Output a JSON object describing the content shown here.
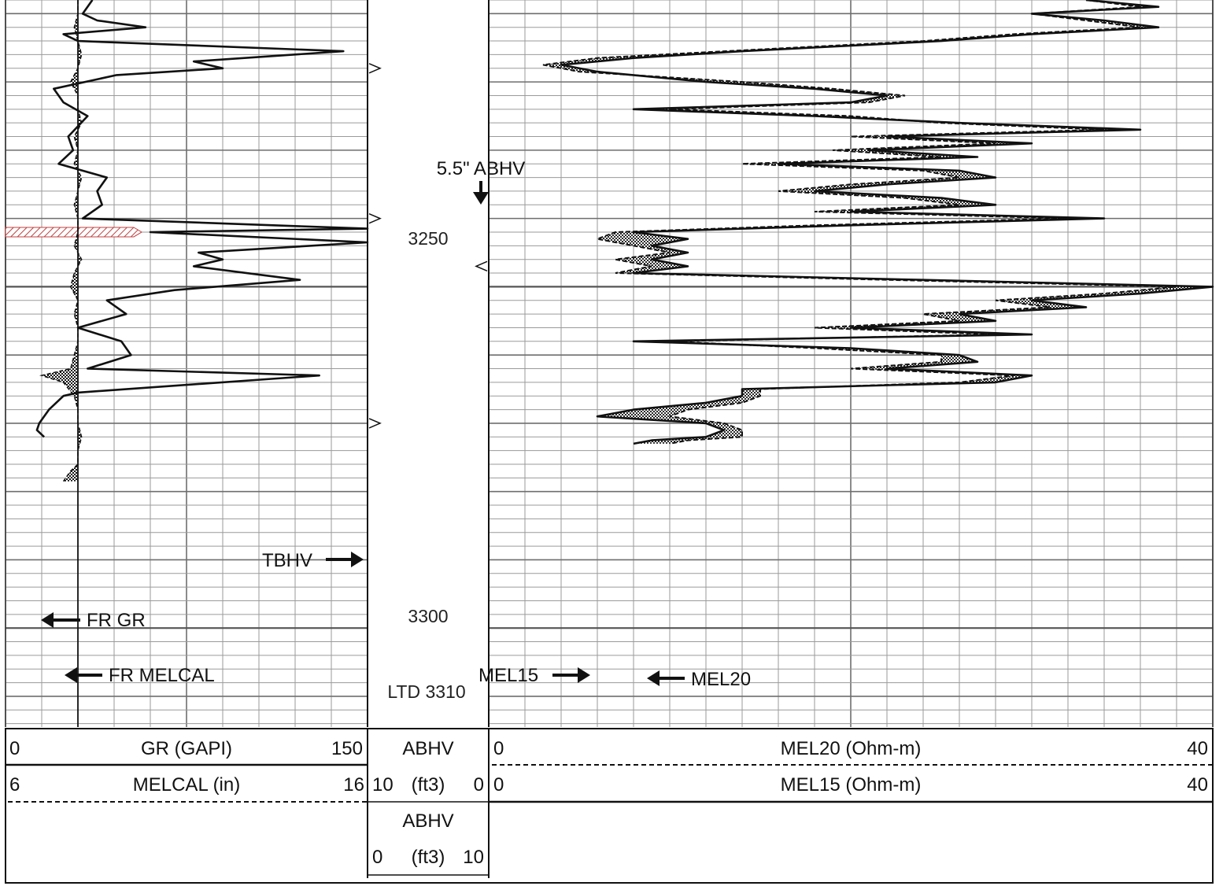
{
  "depth": {
    "top": 3208,
    "bottom": 3314.5,
    "labels": [
      {
        "text": "3250",
        "depth": 3250
      },
      {
        "text": "3300",
        "depth": 3300
      },
      {
        "text": "LTD 3310",
        "depth": 3310
      }
    ]
  },
  "headers": {
    "gr": {
      "left": "0",
      "name": "GR (GAPI)",
      "right": "150"
    },
    "melcal": {
      "left": "6",
      "name": "MELCAL (in)",
      "right": "16"
    },
    "abhv_top": {
      "name": "ABHV"
    },
    "abhv_top_scale": {
      "left": "10",
      "unit": "(ft3)",
      "right": "0"
    },
    "abhv_bottom": {
      "name": "ABHV"
    },
    "abhv_bottom_scale": {
      "left": "0",
      "unit": "(ft3)",
      "right": "10"
    },
    "mel20": {
      "left": "0",
      "name": "MEL20 (Ohm-m)",
      "right": "40"
    },
    "mel15": {
      "left": "0",
      "name": "MEL15 (Ohm-m)",
      "right": "40"
    }
  },
  "annotations": {
    "abhv_marker": "5.5\" ABHV",
    "tbhv": "TBHV",
    "fr_gr": "FR GR",
    "fr_melcal": "FR MELCAL",
    "mel15": "MEL15",
    "mel20": "MEL20"
  },
  "colors": {
    "grid": "#9a9a9a",
    "grid_major": "#6e6e6e",
    "curve": "#111111",
    "hatch": "#c04040"
  },
  "chart_data": {
    "type": "line",
    "tracks": [
      {
        "name": "GR (GAPI)",
        "range": [
          0,
          150
        ]
      },
      {
        "name": "MELCAL (in)",
        "range": [
          6,
          16
        ]
      },
      {
        "name": "ABHV (ft3)",
        "range": [
          10,
          0
        ]
      },
      {
        "name": "MEL20 (Ohm-m)",
        "range": [
          0,
          40
        ]
      },
      {
        "name": "MEL15 (Ohm-m)",
        "range": [
          0,
          40
        ]
      }
    ],
    "series": [
      {
        "name": "GR (GAPI)",
        "points": [
          [
            3208.0,
            36
          ],
          [
            3210.0,
            32
          ],
          [
            3211.0,
            38
          ],
          [
            3212.0,
            58
          ],
          [
            3213.0,
            24
          ],
          [
            3214.0,
            30
          ],
          [
            3215.5,
            140
          ],
          [
            3217.0,
            78
          ],
          [
            3218.0,
            90
          ],
          [
            3219.0,
            46
          ],
          [
            3221.0,
            20
          ],
          [
            3223.0,
            24
          ],
          [
            3225.0,
            34
          ],
          [
            3228.0,
            26
          ],
          [
            3230.0,
            28
          ],
          [
            3232.0,
            22
          ],
          [
            3234.0,
            42
          ],
          [
            3236.0,
            38
          ],
          [
            3238.0,
            40
          ],
          [
            3240.0,
            32
          ],
          [
            3241.5,
            150
          ],
          [
            3242.0,
            60
          ],
          [
            3243.5,
            150
          ],
          [
            3245.0,
            80
          ],
          [
            3246.0,
            90
          ],
          [
            3247.0,
            78
          ],
          [
            3249.0,
            122
          ],
          [
            3250.5,
            70
          ],
          [
            3252.0,
            42
          ],
          [
            3254.0,
            50
          ],
          [
            3256.0,
            30
          ],
          [
            3258.0,
            48
          ],
          [
            3260.0,
            52
          ],
          [
            3262.0,
            34
          ],
          [
            3263.0,
            130
          ],
          [
            3265.5,
            30
          ],
          [
            3266.0,
            24
          ],
          [
            3268.0,
            18
          ],
          [
            3270.0,
            14
          ],
          [
            3271.0,
            13
          ],
          [
            3272.0,
            16
          ]
        ]
      },
      {
        "name": "MELCAL (in)",
        "points": [
          [
            3208.0,
            8.0
          ],
          [
            3210.0,
            8.0
          ],
          [
            3212.0,
            7.9
          ],
          [
            3214.0,
            8.0
          ],
          [
            3216.0,
            8.1
          ],
          [
            3218.0,
            8.0
          ],
          [
            3220.0,
            7.8
          ],
          [
            3222.0,
            8.0
          ],
          [
            3224.0,
            8.0
          ],
          [
            3226.0,
            8.1
          ],
          [
            3228.0,
            7.9
          ],
          [
            3230.0,
            8.0
          ],
          [
            3232.0,
            7.9
          ],
          [
            3234.0,
            8.1
          ],
          [
            3236.0,
            8.0
          ],
          [
            3238.0,
            7.9
          ],
          [
            3240.0,
            8.0
          ],
          [
            3242.0,
            8.0
          ],
          [
            3244.0,
            7.9
          ],
          [
            3246.0,
            8.1
          ],
          [
            3248.0,
            7.9
          ],
          [
            3250.0,
            7.8
          ],
          [
            3252.0,
            8.0
          ],
          [
            3254.0,
            7.9
          ],
          [
            3256.0,
            8.0
          ],
          [
            3258.0,
            8.0
          ],
          [
            3260.0,
            7.9
          ],
          [
            3262.0,
            7.8
          ],
          [
            3263.0,
            7.0
          ],
          [
            3264.0,
            7.6
          ],
          [
            3266.0,
            7.9
          ],
          [
            3268.0,
            8.0
          ],
          [
            3270.0,
            8.0
          ],
          [
            3272.0,
            8.1
          ],
          [
            3274.0,
            8.0
          ],
          [
            3276.0,
            8.0
          ],
          [
            3277.0,
            7.8
          ],
          [
            3278.5,
            7.6
          ]
        ]
      },
      {
        "name": "MEL15 (Ohm-m)",
        "points": [
          [
            3208.0,
            33
          ],
          [
            3209.0,
            37
          ],
          [
            3210.0,
            30
          ],
          [
            3211.0,
            34
          ],
          [
            3212.0,
            37
          ],
          [
            3213.0,
            30
          ],
          [
            3214.0,
            25
          ],
          [
            3215.5,
            14
          ],
          [
            3216.5,
            8
          ],
          [
            3217.5,
            4
          ],
          [
            3218.5,
            6
          ],
          [
            3220.0,
            12
          ],
          [
            3221.0,
            18
          ],
          [
            3222.0,
            22
          ],
          [
            3223.0,
            20
          ],
          [
            3224.0,
            8
          ],
          [
            3225.0,
            18
          ],
          [
            3226.0,
            26
          ],
          [
            3227.0,
            36
          ],
          [
            3228.0,
            22
          ],
          [
            3229.0,
            30
          ],
          [
            3230.0,
            21
          ],
          [
            3231.0,
            27
          ],
          [
            3232.0,
            16
          ],
          [
            3233.0,
            26
          ],
          [
            3234.0,
            28
          ],
          [
            3235.0,
            22
          ],
          [
            3236.0,
            18
          ],
          [
            3237.0,
            25
          ],
          [
            3238.0,
            28
          ],
          [
            3239.0,
            20
          ],
          [
            3240.0,
            34
          ],
          [
            3241.0,
            20
          ],
          [
            3242.0,
            8
          ],
          [
            3243.0,
            11
          ],
          [
            3244.0,
            9
          ],
          [
            3245.0,
            11
          ],
          [
            3246.0,
            9
          ],
          [
            3247.0,
            11
          ],
          [
            3248.0,
            8
          ],
          [
            3249.0,
            24
          ],
          [
            3250.0,
            40
          ],
          [
            3251.0,
            36
          ],
          [
            3252.0,
            30
          ],
          [
            3253.0,
            33
          ],
          [
            3254.0,
            26
          ],
          [
            3255.0,
            28
          ],
          [
            3256.0,
            20
          ],
          [
            3257.0,
            30
          ],
          [
            3258.0,
            8
          ],
          [
            3259.0,
            20
          ],
          [
            3260.0,
            26
          ],
          [
            3261.0,
            27
          ],
          [
            3262.0,
            22
          ],
          [
            3263.0,
            30
          ],
          [
            3264.0,
            28
          ],
          [
            3265.0,
            14
          ],
          [
            3266.0,
            14
          ],
          [
            3267.0,
            12
          ],
          [
            3268.0,
            8
          ],
          [
            3269.0,
            6
          ],
          [
            3270.0,
            12
          ],
          [
            3271.0,
            13
          ],
          [
            3272.0,
            12
          ],
          [
            3272.5,
            9
          ],
          [
            3273.0,
            8
          ]
        ]
      },
      {
        "name": "MEL20 (Ohm-m)",
        "points": [
          [
            3208.0,
            33
          ],
          [
            3209.0,
            36
          ],
          [
            3210.0,
            30
          ],
          [
            3211.0,
            33
          ],
          [
            3212.0,
            36
          ],
          [
            3213.0,
            29
          ],
          [
            3214.0,
            24
          ],
          [
            3215.5,
            13
          ],
          [
            3216.5,
            6
          ],
          [
            3217.5,
            3
          ],
          [
            3218.5,
            5
          ],
          [
            3220.0,
            14
          ],
          [
            3221.0,
            19
          ],
          [
            3222.0,
            23
          ],
          [
            3223.0,
            21
          ],
          [
            3224.0,
            10
          ],
          [
            3225.0,
            20
          ],
          [
            3226.0,
            25
          ],
          [
            3227.0,
            34
          ],
          [
            3228.0,
            20
          ],
          [
            3229.0,
            28
          ],
          [
            3230.0,
            19
          ],
          [
            3231.0,
            25
          ],
          [
            3232.0,
            14
          ],
          [
            3233.0,
            24
          ],
          [
            3234.0,
            26
          ],
          [
            3235.0,
            20
          ],
          [
            3236.0,
            16
          ],
          [
            3237.0,
            23
          ],
          [
            3238.0,
            26
          ],
          [
            3239.0,
            18
          ],
          [
            3240.0,
            32
          ],
          [
            3241.0,
            18
          ],
          [
            3242.0,
            7
          ],
          [
            3243.0,
            6
          ],
          [
            3244.0,
            8
          ],
          [
            3245.0,
            10
          ],
          [
            3246.0,
            7
          ],
          [
            3247.0,
            9
          ],
          [
            3248.0,
            7
          ],
          [
            3249.0,
            22
          ],
          [
            3250.0,
            38
          ],
          [
            3251.0,
            34
          ],
          [
            3252.0,
            28
          ],
          [
            3253.0,
            31
          ],
          [
            3254.0,
            24
          ],
          [
            3255.0,
            26
          ],
          [
            3256.0,
            18
          ],
          [
            3257.0,
            28
          ],
          [
            3258.0,
            10
          ],
          [
            3259.0,
            18
          ],
          [
            3260.0,
            25
          ],
          [
            3261.0,
            25
          ],
          [
            3262.0,
            20
          ],
          [
            3263.0,
            29
          ],
          [
            3264.0,
            26
          ],
          [
            3265.0,
            15
          ],
          [
            3266.0,
            15
          ],
          [
            3267.0,
            14
          ],
          [
            3268.0,
            11
          ],
          [
            3269.0,
            10
          ],
          [
            3270.0,
            13
          ],
          [
            3271.0,
            14
          ],
          [
            3272.0,
            14
          ],
          [
            3272.5,
            11
          ],
          [
            3273.0,
            10
          ]
        ]
      }
    ]
  }
}
